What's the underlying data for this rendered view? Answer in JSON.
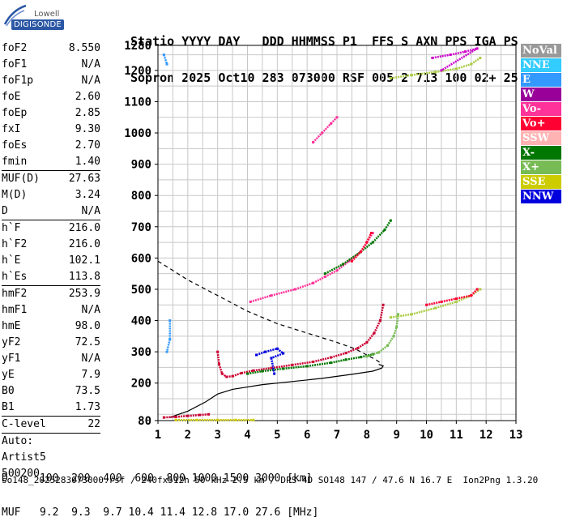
{
  "logo": {
    "line1": "Lowell",
    "line2": "DIGISONDE"
  },
  "header": {
    "row1": "Statio YYYY DAY   DDD HHMMSS P1  FFS S AXN PPS IGA PS",
    "row2": "Sopron 2025 Oct10 283 073000 RSF 005 2 713 100 02+ 25"
  },
  "params": {
    "group1": [
      {
        "label": "foF2",
        "value": "8.550"
      },
      {
        "label": "foF1",
        "value": "N/A"
      },
      {
        "label": "foF1p",
        "value": "N/A"
      },
      {
        "label": "foE",
        "value": "2.60"
      },
      {
        "label": "foEp",
        "value": "2.85"
      },
      {
        "label": "fxI",
        "value": "9.30"
      },
      {
        "label": "foEs",
        "value": "2.70"
      },
      {
        "label": "fmin",
        "value": "1.40"
      }
    ],
    "group2": [
      {
        "label": "MUF(D)",
        "value": "27.63"
      },
      {
        "label": "M(D)",
        "value": "3.24"
      },
      {
        "label": "D",
        "value": "N/A"
      }
    ],
    "group3": [
      {
        "label": "h`F",
        "value": "216.0"
      },
      {
        "label": "h`F2",
        "value": "216.0"
      },
      {
        "label": "h`E",
        "value": "102.1"
      },
      {
        "label": "h`Es",
        "value": "113.8"
      }
    ],
    "group4": [
      {
        "label": "hmF2",
        "value": "253.9"
      },
      {
        "label": "hmF1",
        "value": "N/A"
      },
      {
        "label": "hmE",
        "value": "98.0"
      },
      {
        "label": "yF2",
        "value": "72.5"
      },
      {
        "label": "yF1",
        "value": "N/A"
      },
      {
        "label": "yE",
        "value": "7.9"
      },
      {
        "label": "B0",
        "value": "73.5"
      },
      {
        "label": "B1",
        "value": "1.73"
      }
    ],
    "group5": [
      {
        "label": "C-level",
        "value": "22"
      }
    ],
    "notes": [
      "Auto:",
      "Artist5",
      "500200"
    ]
  },
  "legend": [
    {
      "label": "NoVal",
      "color": "#999999"
    },
    {
      "label": "NNE",
      "color": "#33ccff"
    },
    {
      "label": "E",
      "color": "#3399ff"
    },
    {
      "label": "W",
      "color": "#990099"
    },
    {
      "label": "Vo-",
      "color": "#ff3399"
    },
    {
      "label": "Vo+",
      "color": "#ff0033"
    },
    {
      "label": "SSW",
      "color": "#ffb3b3"
    },
    {
      "label": "X-",
      "color": "#007700"
    },
    {
      "label": "X+",
      "color": "#77bb55"
    },
    {
      "label": "SSE",
      "color": "#cccc00"
    },
    {
      "label": "NNW",
      "color": "#0000dd"
    }
  ],
  "footer": {
    "row1": "D     100  200  400  600  800 1000 1500 3000 [km]",
    "row2": "MUF   9.2  9.3  9.7 10.4 11.4 12.8 17.0 27.6 [MHz]"
  },
  "file_info": "so148_2025283073000.rsf / 240fx512h 50 kHz 2.5 km / DPS-4D SO148 147 / 47.6 N 16.7 E  Ion2Png 1.3.20",
  "chart_data": {
    "type": "scatter",
    "x_ticks": [
      "1",
      "2",
      "3",
      "4",
      "5",
      "6",
      "7",
      "8",
      "9",
      "10",
      "11",
      "12",
      "13"
    ],
    "y_ticks": [
      "80",
      "200",
      "300",
      "400",
      "500",
      "600",
      "700",
      "800",
      "900",
      "1000",
      "1100",
      "1200",
      "1280"
    ],
    "xlim": [
      1,
      13
    ],
    "ylim": [
      80,
      1280
    ],
    "grid": true,
    "legend_position": "right",
    "series": [
      {
        "name": "Vo+",
        "color": "#cc0033",
        "points": [
          [
            3.0,
            300
          ],
          [
            3.05,
            260
          ],
          [
            3.15,
            230
          ],
          [
            3.3,
            220
          ],
          [
            3.5,
            222
          ],
          [
            3.8,
            232
          ],
          [
            4.2,
            240
          ],
          [
            4.8,
            248
          ],
          [
            5.5,
            258
          ],
          [
            6.2,
            268
          ],
          [
            6.8,
            282
          ],
          [
            7.3,
            296
          ],
          [
            7.7,
            312
          ],
          [
            8.0,
            330
          ],
          [
            8.25,
            360
          ],
          [
            8.45,
            400
          ],
          [
            8.55,
            450
          ]
        ]
      },
      {
        "name": "X-",
        "color": "#007700",
        "points": [
          [
            4.0,
            230
          ],
          [
            4.5,
            238
          ],
          [
            5.2,
            246
          ],
          [
            6.0,
            254
          ],
          [
            6.8,
            265
          ],
          [
            7.3,
            275
          ],
          [
            7.8,
            283
          ],
          [
            8.2,
            292
          ]
        ]
      },
      {
        "name": "X+",
        "color": "#77bb55",
        "points": [
          [
            8.0,
            285
          ],
          [
            8.4,
            298
          ],
          [
            8.7,
            320
          ],
          [
            8.9,
            350
          ],
          [
            9.0,
            380
          ],
          [
            9.05,
            420
          ]
        ]
      },
      {
        "name": "Vo-",
        "color": "#ff3399",
        "points": [
          [
            4.1,
            460
          ],
          [
            4.8,
            480
          ],
          [
            5.6,
            500
          ],
          [
            6.2,
            520
          ],
          [
            6.6,
            540
          ],
          [
            7.0,
            560
          ],
          [
            7.4,
            590
          ],
          [
            7.8,
            620
          ],
          [
            8.0,
            650
          ],
          [
            8.2,
            680
          ],
          [
            6.2,
            970
          ],
          [
            6.5,
            1000
          ],
          [
            6.8,
            1030
          ],
          [
            7.0,
            1050
          ]
        ]
      },
      {
        "name": "X-",
        "color": "#007700",
        "points": [
          [
            6.6,
            550
          ],
          [
            7.2,
            580
          ],
          [
            7.8,
            620
          ],
          [
            8.2,
            650
          ],
          [
            8.6,
            690
          ],
          [
            8.8,
            720
          ]
        ]
      },
      {
        "name": "Vo+",
        "color": "#ff0033",
        "points": [
          [
            7.5,
            590
          ],
          [
            7.8,
            620
          ],
          [
            8.0,
            650
          ],
          [
            8.15,
            680
          ]
        ]
      },
      {
        "name": "X+",
        "color": "#aacc44",
        "points": [
          [
            8.8,
            410
          ],
          [
            9.5,
            420
          ],
          [
            10.3,
            440
          ],
          [
            11.0,
            460
          ],
          [
            11.5,
            480
          ],
          [
            11.8,
            500
          ]
        ]
      },
      {
        "name": "Vo+",
        "color": "#ff0033",
        "points": [
          [
            10.0,
            450
          ],
          [
            10.5,
            460
          ],
          [
            11.0,
            470
          ],
          [
            11.5,
            480
          ],
          [
            11.7,
            500
          ]
        ]
      },
      {
        "name": "X+",
        "color": "#aacc44",
        "points": [
          [
            8.8,
            1175
          ],
          [
            9.5,
            1185
          ],
          [
            10.3,
            1195
          ],
          [
            11.0,
            1205
          ],
          [
            11.5,
            1220
          ],
          [
            11.8,
            1240
          ]
        ]
      },
      {
        "name": "W",
        "color": "#cc00cc",
        "points": [
          [
            10.2,
            1240
          ],
          [
            10.8,
            1250
          ],
          [
            11.3,
            1260
          ],
          [
            11.7,
            1270
          ],
          [
            10.5,
            1200
          ]
        ]
      },
      {
        "name": "E",
        "color": "#3399ff",
        "points": [
          [
            1.2,
            1250
          ],
          [
            1.3,
            1220
          ],
          [
            1.4,
            400
          ],
          [
            1.4,
            340
          ],
          [
            1.3,
            300
          ]
        ]
      },
      {
        "name": "NNW",
        "color": "#0000dd",
        "points": [
          [
            4.3,
            290
          ],
          [
            4.6,
            300
          ],
          [
            5.0,
            310
          ],
          [
            5.2,
            295
          ],
          [
            4.8,
            280
          ],
          [
            4.9,
            230
          ]
        ]
      },
      {
        "name": "Vo+",
        "color": "#cc0033",
        "points": [
          [
            1.2,
            90
          ],
          [
            1.6,
            92
          ],
          [
            2.0,
            95
          ],
          [
            2.4,
            98
          ],
          [
            2.7,
            100
          ]
        ]
      },
      {
        "name": "SSE",
        "color": "#cccc00",
        "points": [
          [
            1.6,
            82
          ],
          [
            2.3,
            82
          ],
          [
            3.0,
            82
          ],
          [
            3.6,
            82
          ],
          [
            4.2,
            82
          ]
        ]
      }
    ],
    "model_curves": [
      {
        "name": "profile-dashed",
        "style": "dashed",
        "points": [
          [
            1.0,
            590
          ],
          [
            1.5,
            560
          ],
          [
            2.0,
            530
          ],
          [
            3.0,
            480
          ],
          [
            4.0,
            430
          ],
          [
            5.0,
            390
          ],
          [
            6.0,
            360
          ],
          [
            7.0,
            330
          ],
          [
            7.6,
            310
          ],
          [
            8.0,
            290
          ],
          [
            8.3,
            275
          ],
          [
            8.5,
            262
          ]
        ]
      },
      {
        "name": "profile-solid",
        "style": "solid",
        "points": [
          [
            1.4,
            90
          ],
          [
            2.0,
            110
          ],
          [
            2.6,
            140
          ],
          [
            3.0,
            165
          ],
          [
            3.5,
            180
          ],
          [
            4.5,
            195
          ],
          [
            5.5,
            205
          ],
          [
            6.5,
            215
          ],
          [
            7.5,
            228
          ],
          [
            8.2,
            238
          ],
          [
            8.5,
            248
          ],
          [
            8.55,
            255
          ],
          [
            8.4,
            260
          ]
        ]
      }
    ]
  }
}
